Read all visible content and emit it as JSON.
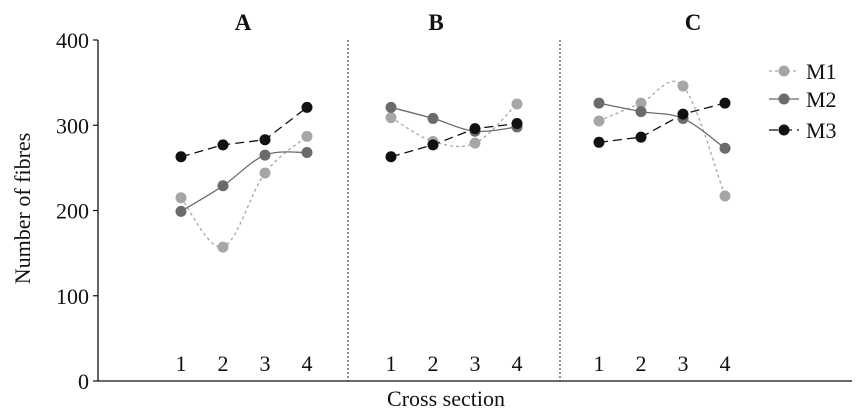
{
  "chart_data": {
    "type": "line",
    "ylabel": "Number of fibres",
    "xlabel": "Cross section",
    "ylim": [
      0,
      400
    ],
    "yticks": [
      0,
      100,
      200,
      300,
      400
    ],
    "categories": [
      "1",
      "2",
      "3",
      "4"
    ],
    "legend_position": "right",
    "grid": false,
    "series_styles": [
      {
        "name": "M1",
        "color": "#a6a6a6",
        "dash": "dotted",
        "curve": "smooth"
      },
      {
        "name": "M2",
        "color": "#6b6b6b",
        "dash": "solid",
        "curve": "smooth"
      },
      {
        "name": "M3",
        "color": "#111111",
        "dash": "dashed",
        "curve": "straight"
      }
    ],
    "panels": [
      {
        "title": "A",
        "series": [
          {
            "name": "M1",
            "values": [
              215,
              157,
              244,
              287
            ]
          },
          {
            "name": "M2",
            "values": [
              199,
              229,
              265,
              268
            ]
          },
          {
            "name": "M3",
            "values": [
              263,
              277,
              283,
              321
            ]
          }
        ]
      },
      {
        "title": "B",
        "series": [
          {
            "name": "M1",
            "values": [
              309,
              281,
              279,
              325
            ]
          },
          {
            "name": "M2",
            "values": [
              321,
              308,
              293,
              298
            ]
          },
          {
            "name": "M3",
            "values": [
              263,
              277,
              296,
              302
            ]
          }
        ]
      },
      {
        "title": "C",
        "series": [
          {
            "name": "M1",
            "values": [
              305,
              326,
              346,
              217
            ]
          },
          {
            "name": "M2",
            "values": [
              326,
              316,
              308,
              273
            ]
          },
          {
            "name": "M3",
            "values": [
              280,
              286,
              313,
              326
            ]
          }
        ]
      }
    ]
  }
}
